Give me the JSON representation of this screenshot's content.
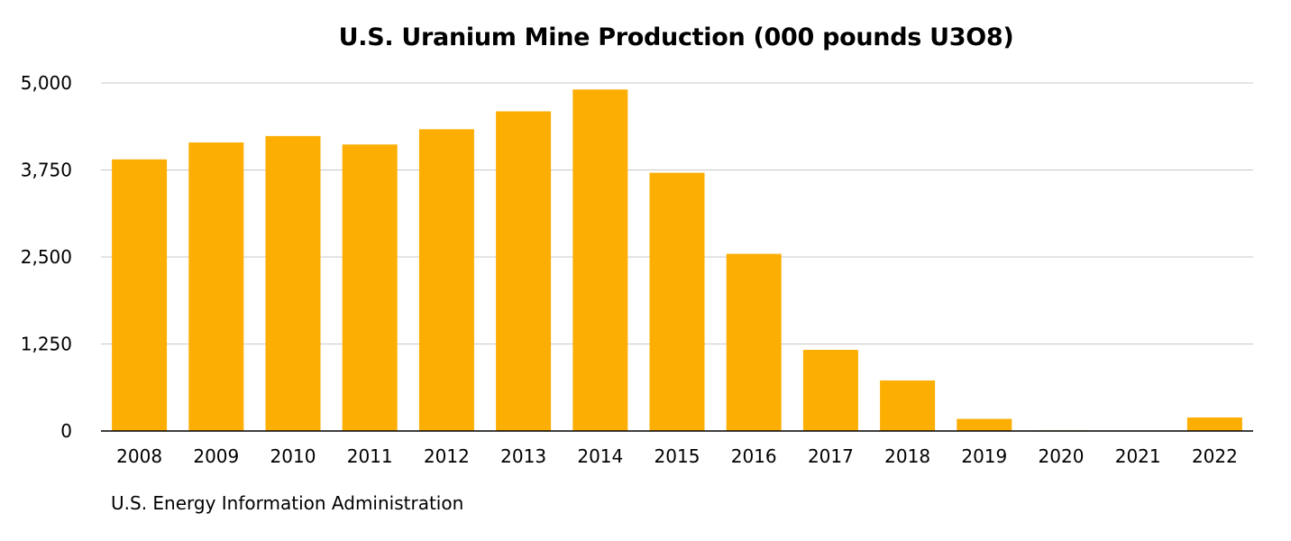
{
  "chart_data": {
    "type": "bar",
    "title": "U.S. Uranium Mine Production (000 pounds U3O8)",
    "source": "U.S. Energy Information Administration",
    "xlabel": "",
    "ylabel": "",
    "categories": [
      "2008",
      "2009",
      "2010",
      "2011",
      "2012",
      "2013",
      "2014",
      "2015",
      "2016",
      "2017",
      "2018",
      "2019",
      "2020",
      "2021",
      "2022"
    ],
    "values": [
      3902,
      4145,
      4237,
      4116,
      4335,
      4592,
      4906,
      3710,
      2545,
      1166,
      726,
      174,
      8,
      0,
      194
    ],
    "ylim": [
      0,
      5000
    ],
    "yticks": [
      0,
      1250,
      2500,
      3750,
      5000
    ],
    "ytick_labels": [
      "0",
      "1,250",
      "2,500",
      "3,750",
      "5,000"
    ],
    "grid": true,
    "legend": "none",
    "bar_color": "#FDAE02",
    "grid_color": "#C8C8C8",
    "axis_color": "#000000"
  }
}
